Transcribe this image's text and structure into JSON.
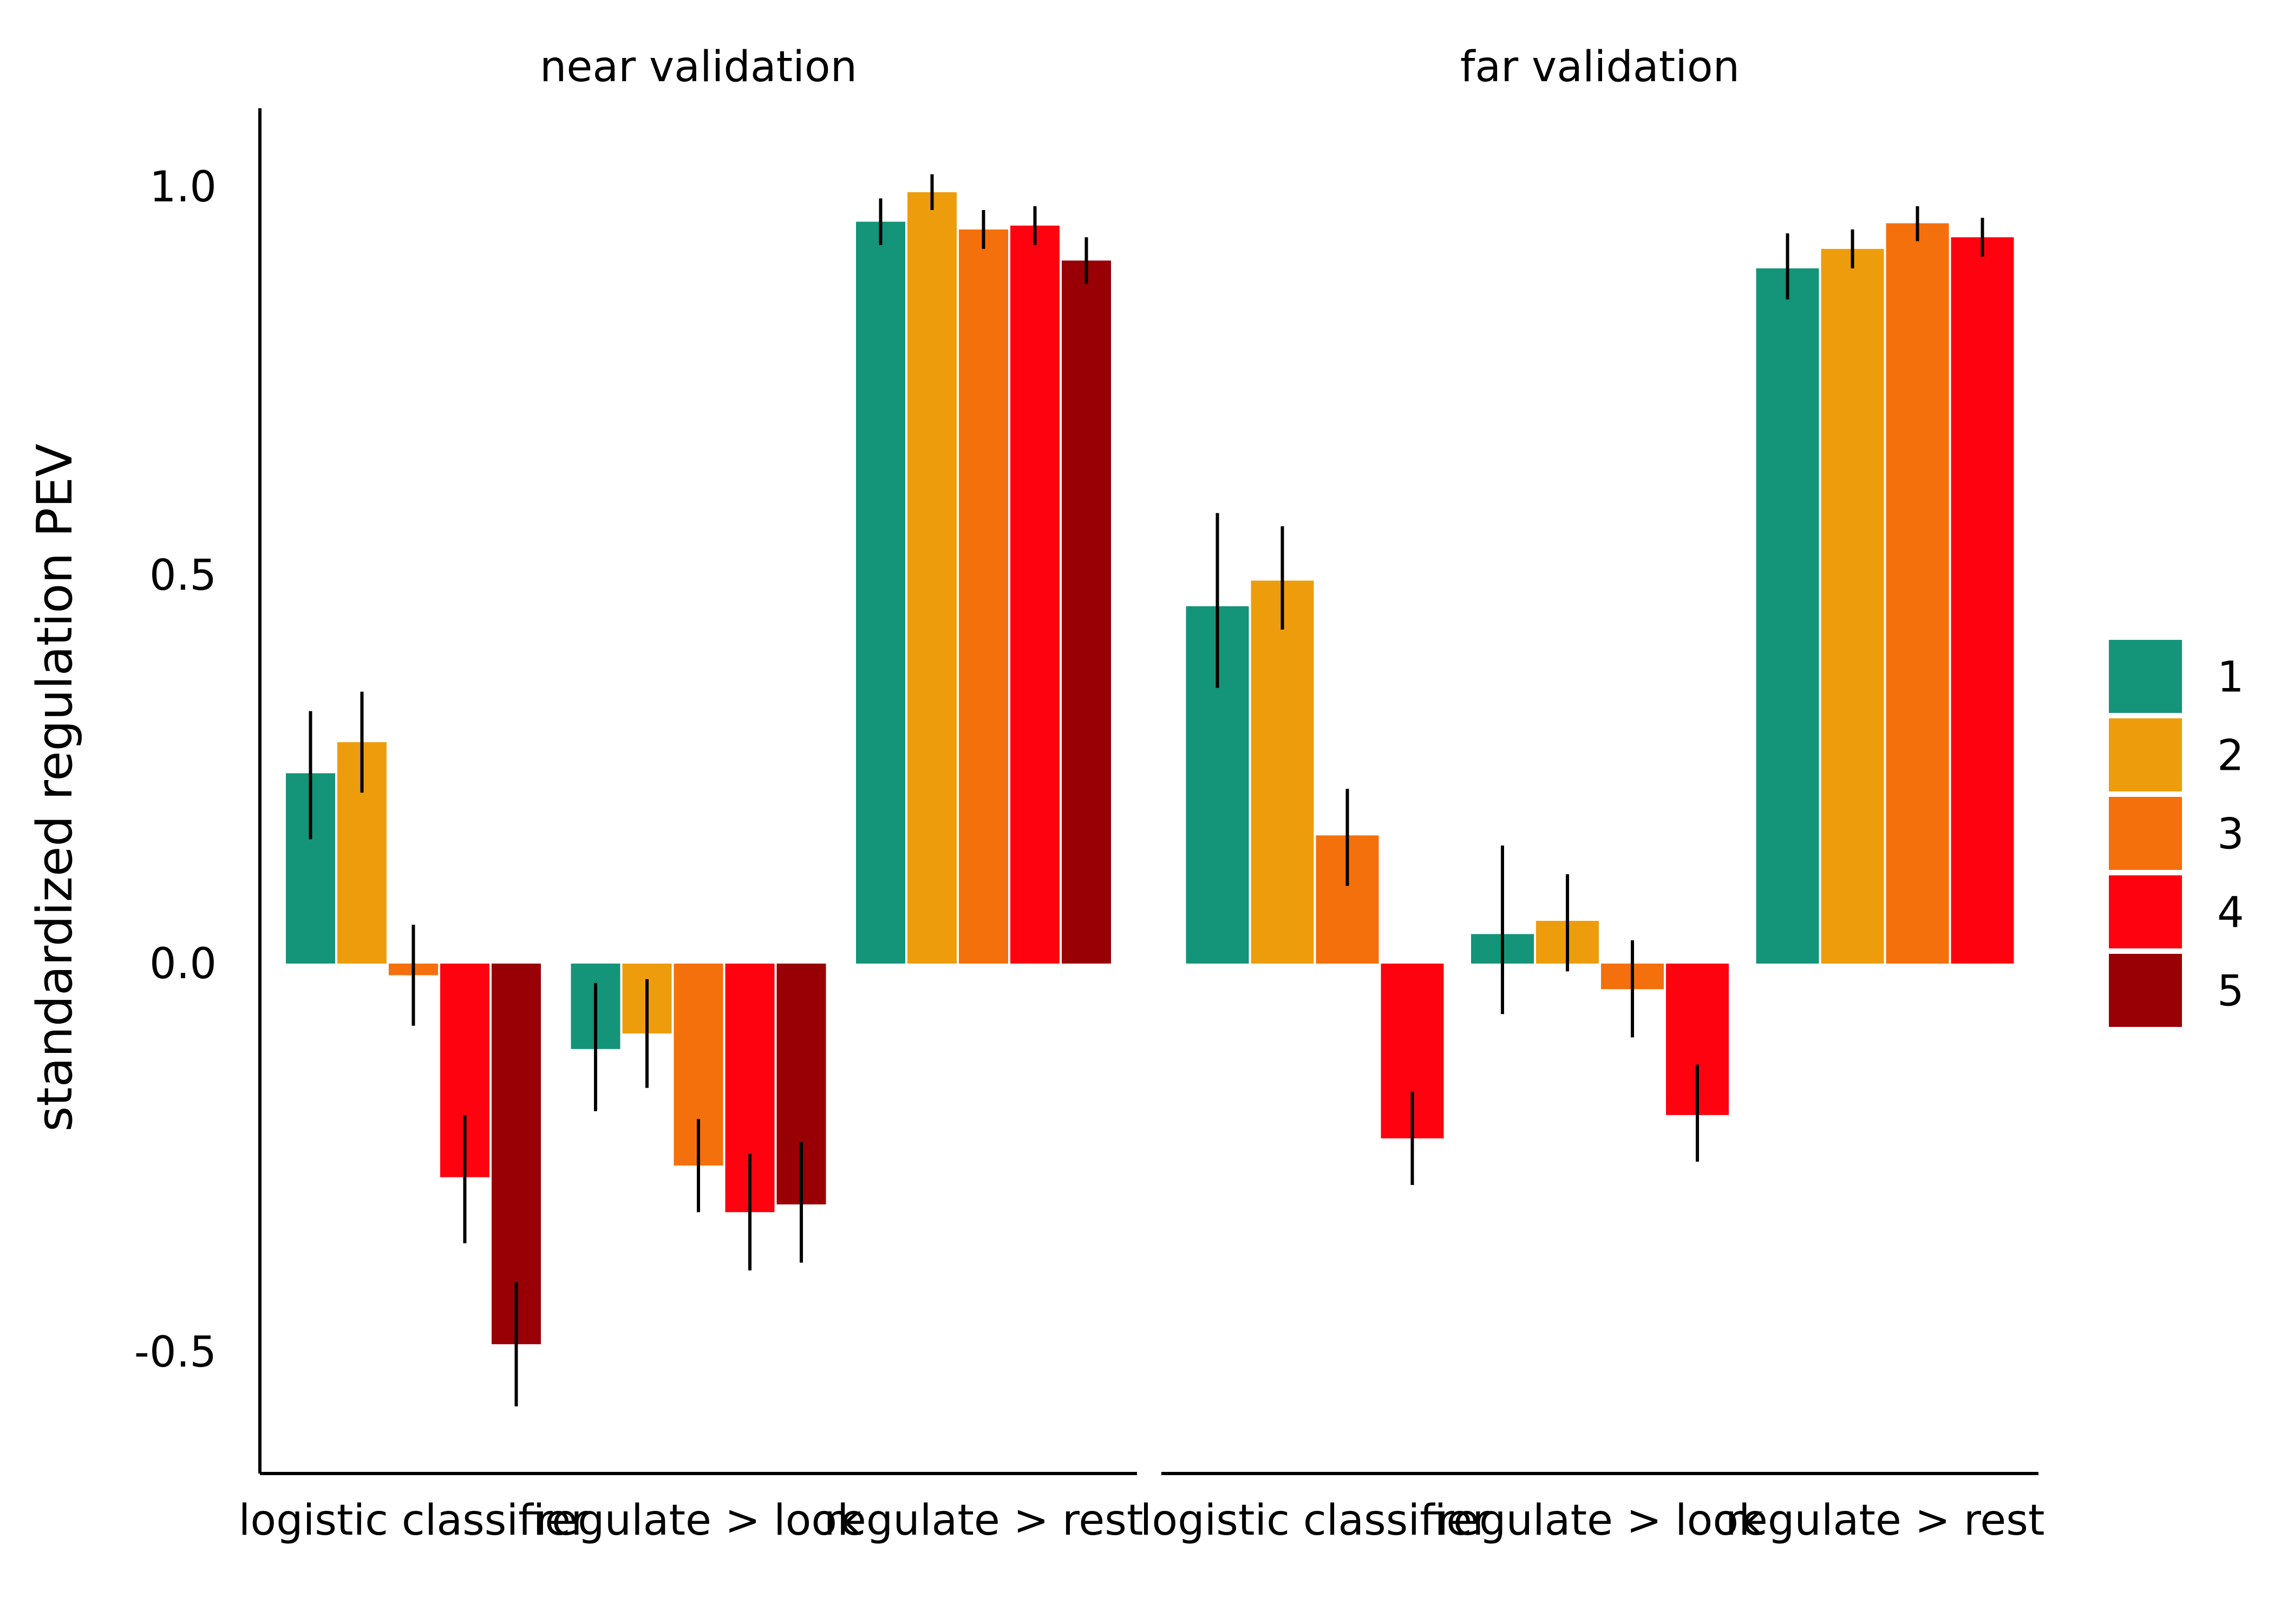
{
  "chart_data": {
    "type": "bar",
    "ylabel": "standardized regulation PEV",
    "xlabel": "",
    "ylim": [
      -0.65,
      1.1
    ],
    "yticks": [
      {
        "value": 1.0,
        "label": "1.0"
      },
      {
        "value": 0.5,
        "label": "0.5"
      },
      {
        "value": 0.0,
        "label": "0.0"
      },
      {
        "value": -0.5,
        "label": "-0.5"
      }
    ],
    "grid": false,
    "legend_position": "right",
    "legend": [
      {
        "label": "1",
        "color": "#149478"
      },
      {
        "label": "2",
        "color": "#ED9D0C"
      },
      {
        "label": "3",
        "color": "#F4700C"
      },
      {
        "label": "4",
        "color": "#FF0210"
      },
      {
        "label": "5",
        "color": "#980005"
      }
    ],
    "facets": [
      {
        "title": "near validation",
        "categories": [
          "logistic classifier",
          "regulate > look",
          "regulate > rest"
        ],
        "groups": [
          {
            "category": "logistic classifier",
            "bars": [
              {
                "level": "1",
                "value": 0.245,
                "lo": 0.16,
                "hi": 0.325
              },
              {
                "level": "2",
                "value": 0.285,
                "lo": 0.22,
                "hi": 0.35
              },
              {
                "level": "3",
                "value": -0.015,
                "lo": -0.08,
                "hi": 0.05
              },
              {
                "level": "4",
                "value": -0.275,
                "lo": -0.36,
                "hi": -0.195
              },
              {
                "level": "5",
                "value": -0.49,
                "lo": -0.57,
                "hi": -0.41
              }
            ]
          },
          {
            "category": "regulate > look",
            "bars": [
              {
                "level": "1",
                "value": -0.11,
                "lo": -0.19,
                "hi": -0.025
              },
              {
                "level": "2",
                "value": -0.09,
                "lo": -0.16,
                "hi": -0.02
              },
              {
                "level": "3",
                "value": -0.26,
                "lo": -0.32,
                "hi": -0.2
              },
              {
                "level": "4",
                "value": -0.32,
                "lo": -0.395,
                "hi": -0.245
              },
              {
                "level": "5",
                "value": -0.31,
                "lo": -0.385,
                "hi": -0.23
              }
            ]
          },
          {
            "category": "regulate > rest",
            "bars": [
              {
                "level": "1",
                "value": 0.955,
                "lo": 0.925,
                "hi": 0.985
              },
              {
                "level": "2",
                "value": 0.993,
                "lo": 0.97,
                "hi": 1.016
              },
              {
                "level": "3",
                "value": 0.945,
                "lo": 0.92,
                "hi": 0.97
              },
              {
                "level": "4",
                "value": 0.95,
                "lo": 0.925,
                "hi": 0.975
              },
              {
                "level": "5",
                "value": 0.905,
                "lo": 0.875,
                "hi": 0.935
              }
            ]
          }
        ]
      },
      {
        "title": "far validation",
        "categories": [
          "logistic classifier",
          "regulate > look",
          "regulate > rest"
        ],
        "groups": [
          {
            "category": "logistic classifier",
            "bars": [
              {
                "level": "1",
                "value": 0.46,
                "lo": 0.355,
                "hi": 0.58
              },
              {
                "level": "2",
                "value": 0.493,
                "lo": 0.43,
                "hi": 0.563
              },
              {
                "level": "3",
                "value": 0.165,
                "lo": 0.1,
                "hi": 0.225
              }
            ]
          },
          {
            "category": "regulate > look",
            "bars": [
              {
                "level": "1",
                "value": 0.038,
                "lo": -0.065,
                "hi": 0.152
              },
              {
                "level": "2",
                "value": 0.055,
                "lo": -0.01,
                "hi": 0.115
              },
              {
                "level": "3",
                "value": -0.033,
                "lo": -0.095,
                "hi": 0.03
              }
            ]
          },
          {
            "category": "regulate > rest",
            "bars": [
              {
                "level": "1",
                "value": 0.895,
                "lo": 0.855,
                "hi": 0.94
              },
              {
                "level": "2",
                "value": 0.92,
                "lo": 0.895,
                "hi": 0.945
              },
              {
                "level": "3",
                "value": 0.953,
                "lo": 0.93,
                "hi": 0.975
              }
            ]
          },
          {
            "category": "logistic classifier",
            "bars": [
              {
                "level": "4",
                "value": -0.225,
                "lo": -0.285,
                "hi": -0.165
              }
            ]
          },
          {
            "category": "regulate > look",
            "bars": [
              {
                "level": "4",
                "value": -0.195,
                "lo": -0.255,
                "hi": -0.13
              }
            ]
          },
          {
            "category": "regulate > rest",
            "bars": [
              {
                "level": "4",
                "value": 0.935,
                "lo": 0.91,
                "hi": 0.96
              }
            ]
          }
        ]
      }
    ]
  }
}
